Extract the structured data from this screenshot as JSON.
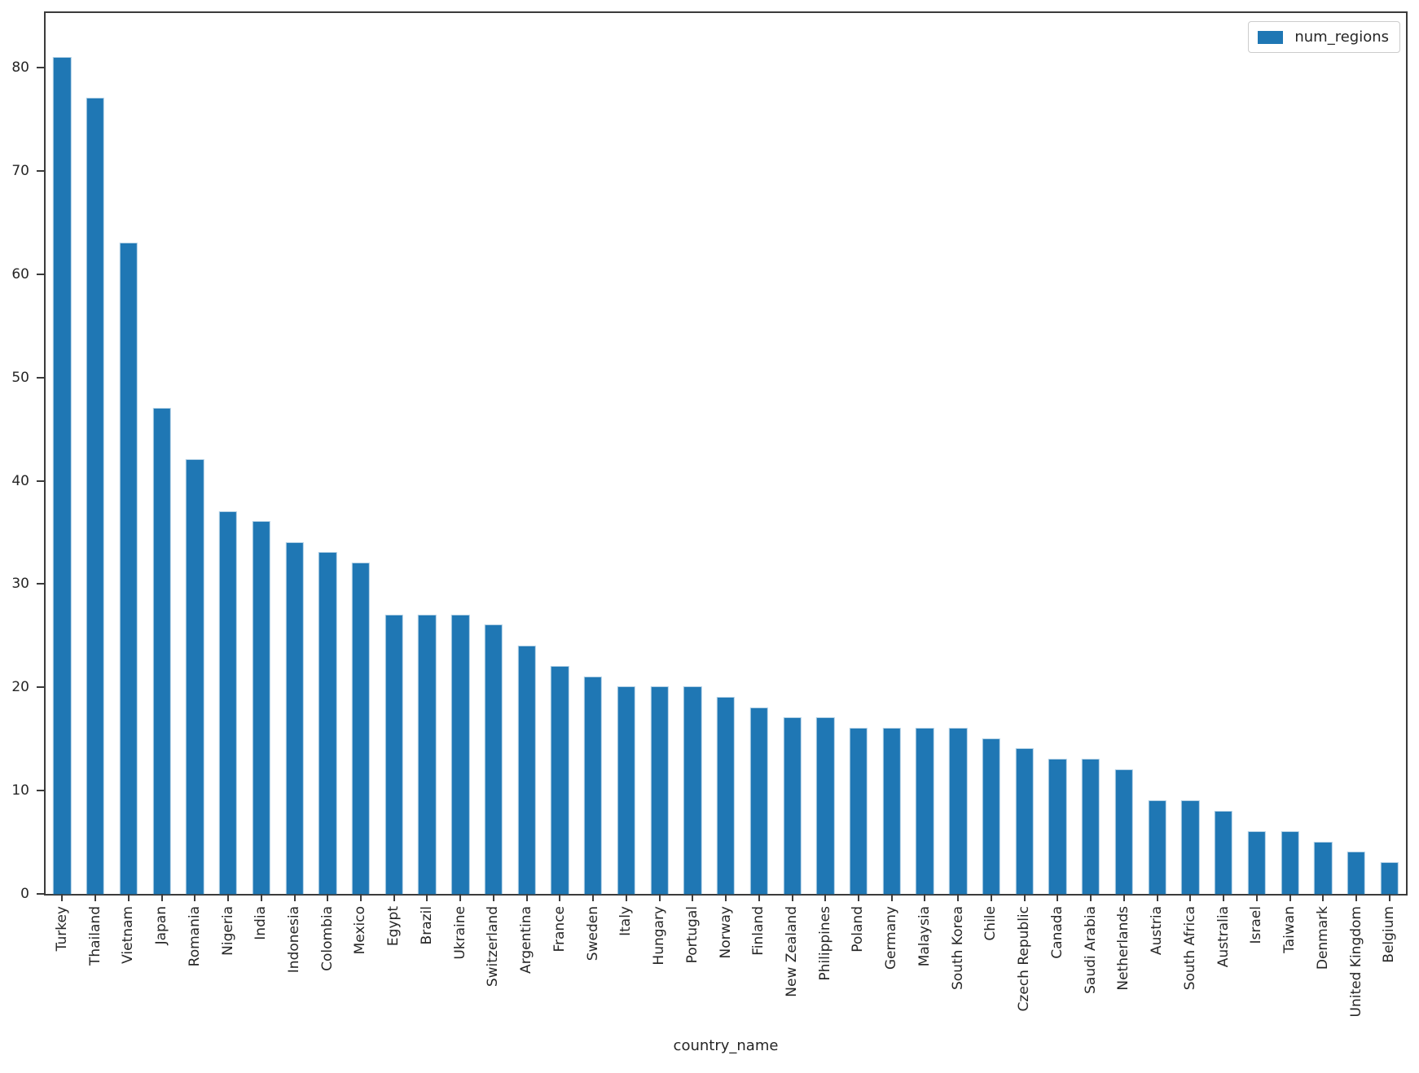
{
  "figure": {
    "background": "#ffffff",
    "plot_border_color": "#3b3b3b",
    "text_color": "#262626"
  },
  "legend": {
    "label": "num_regions",
    "swatch_color": "#1f77b4",
    "position": "upper right"
  },
  "axes": {
    "x_title": "country_name",
    "y_ticks": [
      0,
      10,
      20,
      30,
      40,
      50,
      60,
      70,
      80
    ]
  },
  "chart_data": {
    "type": "bar",
    "title": "",
    "xlabel": "country_name",
    "ylabel": "",
    "legend_entries": [
      "num_regions"
    ],
    "legend_position": "upper right",
    "grid": false,
    "bar_color": "#1f77b4",
    "ylim": [
      0,
      85.3
    ],
    "yticks": [
      0,
      10,
      20,
      30,
      40,
      50,
      60,
      70,
      80
    ],
    "x_tick_rotation": 90,
    "categories": [
      "Turkey",
      "Thailand",
      "Vietnam",
      "Japan",
      "Romania",
      "Nigeria",
      "India",
      "Indonesia",
      "Colombia",
      "Mexico",
      "Egypt",
      "Brazil",
      "Ukraine",
      "Switzerland",
      "Argentina",
      "France",
      "Sweden",
      "Italy",
      "Hungary",
      "Portugal",
      "Norway",
      "Finland",
      "New Zealand",
      "Philippines",
      "Poland",
      "Germany",
      "Malaysia",
      "South Korea",
      "Chile",
      "Czech Republic",
      "Canada",
      "Saudi Arabia",
      "Netherlands",
      "Austria",
      "South Africa",
      "Australia",
      "Israel",
      "Taiwan",
      "Denmark",
      "United Kingdom",
      "Belgium"
    ],
    "series": [
      {
        "name": "num_regions",
        "values": [
          81,
          77,
          63,
          47,
          42,
          37,
          36,
          34,
          33,
          32,
          27,
          27,
          27,
          26,
          24,
          22,
          21,
          20,
          20,
          20,
          19,
          18,
          17,
          17,
          16,
          16,
          16,
          16,
          15,
          14,
          13,
          13,
          12,
          9,
          9,
          8,
          6,
          6,
          5,
          4,
          3
        ]
      }
    ]
  }
}
